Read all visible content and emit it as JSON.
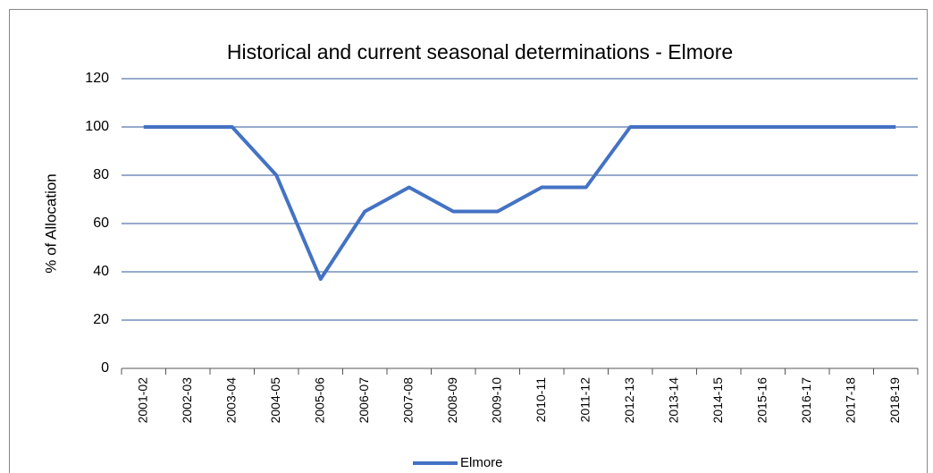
{
  "chart_data": {
    "type": "line",
    "title": "Historical and current seasonal determinations - Elmore",
    "ylabel": "% of Allocation",
    "categories": [
      "2001-02",
      "2002-03",
      "2003-04",
      "2004-05",
      "2005-06",
      "2006-07",
      "2007-08",
      "2008-09",
      "2009-10",
      "2010-11",
      "2011-12",
      "2012-13",
      "2013-14",
      "2014-15",
      "2015-16",
      "2016-17",
      "2017-18",
      "2018-19"
    ],
    "series": [
      {
        "name": "Elmore",
        "color": "#4472c4",
        "values": [
          100,
          100,
          100,
          80,
          37,
          65,
          75,
          65,
          65,
          75,
          75,
          100,
          100,
          100,
          100,
          100,
          100,
          100
        ]
      }
    ],
    "ylim": [
      0,
      120
    ],
    "yticks": [
      0,
      20,
      40,
      60,
      80,
      100,
      120
    ],
    "grid": true,
    "legend": "bottom"
  }
}
